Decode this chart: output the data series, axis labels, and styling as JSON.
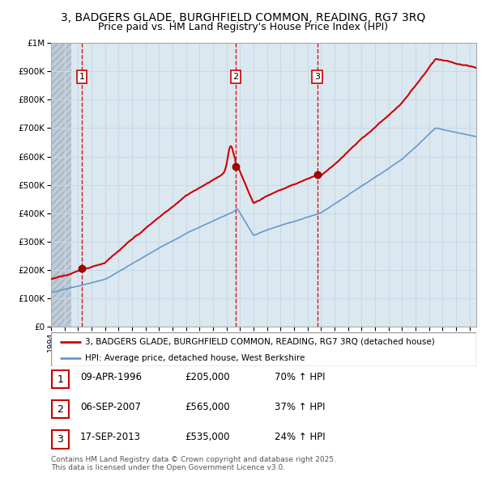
{
  "title": "3, BADGERS GLADE, BURGHFIELD COMMON, READING, RG7 3RQ",
  "subtitle": "Price paid vs. HM Land Registry's House Price Index (HPI)",
  "ylim": [
    0,
    1000000
  ],
  "ytick_vals": [
    0,
    100000,
    200000,
    300000,
    400000,
    500000,
    600000,
    700000,
    800000,
    900000,
    1000000
  ],
  "ytick_labels": [
    "£0",
    "£100K",
    "£200K",
    "£300K",
    "£400K",
    "£500K",
    "£600K",
    "£700K",
    "£800K",
    "£900K",
    "£1M"
  ],
  "xmin": 1994.0,
  "xmax": 2025.5,
  "sale_dates": [
    1996.27,
    2007.68,
    2013.71
  ],
  "sale_prices": [
    205000,
    565000,
    535000
  ],
  "sale_labels": [
    "1",
    "2",
    "3"
  ],
  "vline_dates": [
    1996.27,
    2007.68,
    2013.71
  ],
  "red_line_color": "#cc0000",
  "blue_line_color": "#6699cc",
  "grid_color": "#c8d8e8",
  "plot_bg_color": "#dce8f0",
  "dashed_vline_color": "#cc0000",
  "legend_line1": "3, BADGERS GLADE, BURGHFIELD COMMON, READING, RG7 3RQ (detached house)",
  "legend_line2": "HPI: Average price, detached house, West Berkshire",
  "table_rows": [
    [
      "1",
      "09-APR-1996",
      "£205,000",
      "70% ↑ HPI"
    ],
    [
      "2",
      "06-SEP-2007",
      "£565,000",
      "37% ↑ HPI"
    ],
    [
      "3",
      "17-SEP-2013",
      "£535,000",
      "24% ↑ HPI"
    ]
  ],
  "footnote": "Contains HM Land Registry data © Crown copyright and database right 2025.\nThis data is licensed under the Open Government Licence v3.0.",
  "title_fontsize": 10,
  "subtitle_fontsize": 9,
  "tick_fontsize": 7.5,
  "legend_fontsize": 7.5,
  "table_fontsize": 8.5,
  "footnote_fontsize": 6.5
}
